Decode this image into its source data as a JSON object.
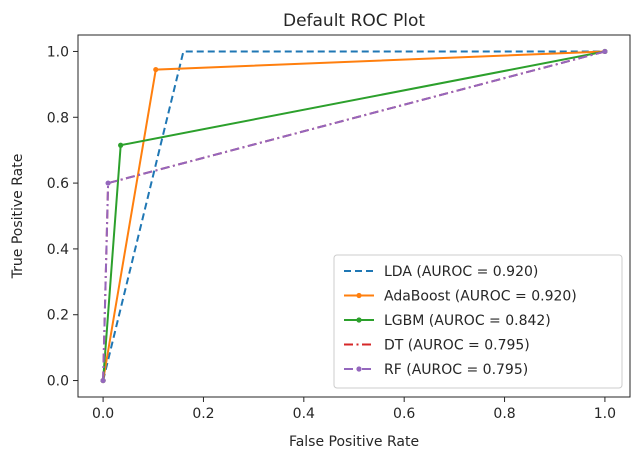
{
  "chart_data": {
    "type": "line",
    "title": "Default ROC Plot",
    "xlabel": "False Positive Rate",
    "ylabel": "True Positive Rate",
    "xlim": [
      -0.05,
      1.05
    ],
    "ylim": [
      -0.05,
      1.05
    ],
    "xticks": [
      "0.0",
      "0.2",
      "0.4",
      "0.6",
      "0.8",
      "1.0"
    ],
    "yticks": [
      "0.0",
      "0.2",
      "0.4",
      "0.6",
      "0.8",
      "1.0"
    ],
    "grid": false,
    "legend_position": "lower-right",
    "series": [
      {
        "name": "LDA (AUROC = 0.920)",
        "color": "#1f77b4",
        "dash": "dashed",
        "marker": false,
        "x": [
          0.0,
          0.16,
          1.0
        ],
        "y": [
          0.0,
          1.0,
          1.0
        ]
      },
      {
        "name": "AdaBoost (AUROC = 0.920)",
        "color": "#ff7f0e",
        "dash": "solid",
        "marker": true,
        "x": [
          0.0,
          0.105,
          1.0
        ],
        "y": [
          0.0,
          0.945,
          1.0
        ]
      },
      {
        "name": "LGBM (AUROC = 0.842)",
        "color": "#2ca02c",
        "dash": "solid",
        "marker": true,
        "x": [
          0.0,
          0.035,
          1.0
        ],
        "y": [
          0.0,
          0.715,
          1.0
        ]
      },
      {
        "name": "DT (AUROC = 0.795)",
        "color": "#d62728",
        "dash": "dashdot",
        "marker": false,
        "x": [
          0.0,
          0.01,
          1.0
        ],
        "y": [
          0.0,
          0.6,
          1.0
        ]
      },
      {
        "name": "RF (AUROC = 0.795)",
        "color": "#9467bd",
        "dash": "dashdot",
        "marker": true,
        "x": [
          0.0,
          0.01,
          1.0
        ],
        "y": [
          0.0,
          0.6,
          1.0
        ]
      }
    ]
  }
}
